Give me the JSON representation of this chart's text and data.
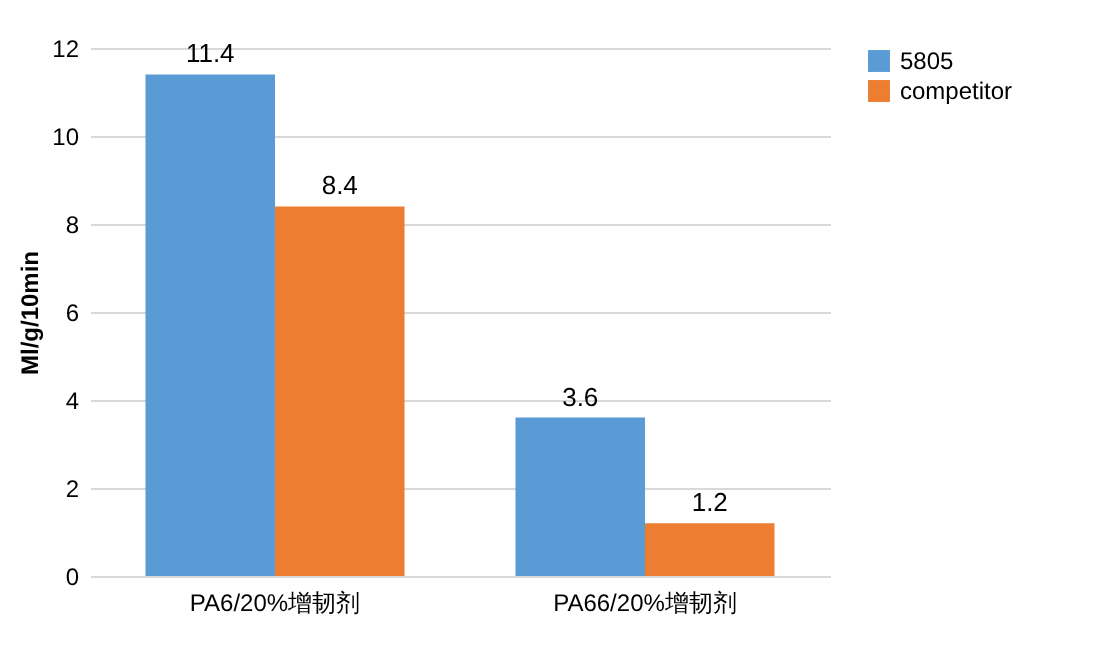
{
  "chart_data": {
    "type": "bar",
    "ylabel": "Ml/g/10min",
    "categories": [
      "PA6/20%增韧剂",
      "PA66/20%增韧剂"
    ],
    "series": [
      {
        "name": "5805",
        "color": "#5b9bd5",
        "values": [
          11.4,
          3.6
        ]
      },
      {
        "name": "competitor",
        "color": "#ed7d31",
        "values": [
          8.4,
          1.2
        ]
      }
    ],
    "ylim": [
      0,
      12
    ],
    "yticks": [
      0,
      2,
      4,
      6,
      8,
      10,
      12
    ],
    "grid": "y",
    "legend": "right",
    "data_labels": true
  }
}
